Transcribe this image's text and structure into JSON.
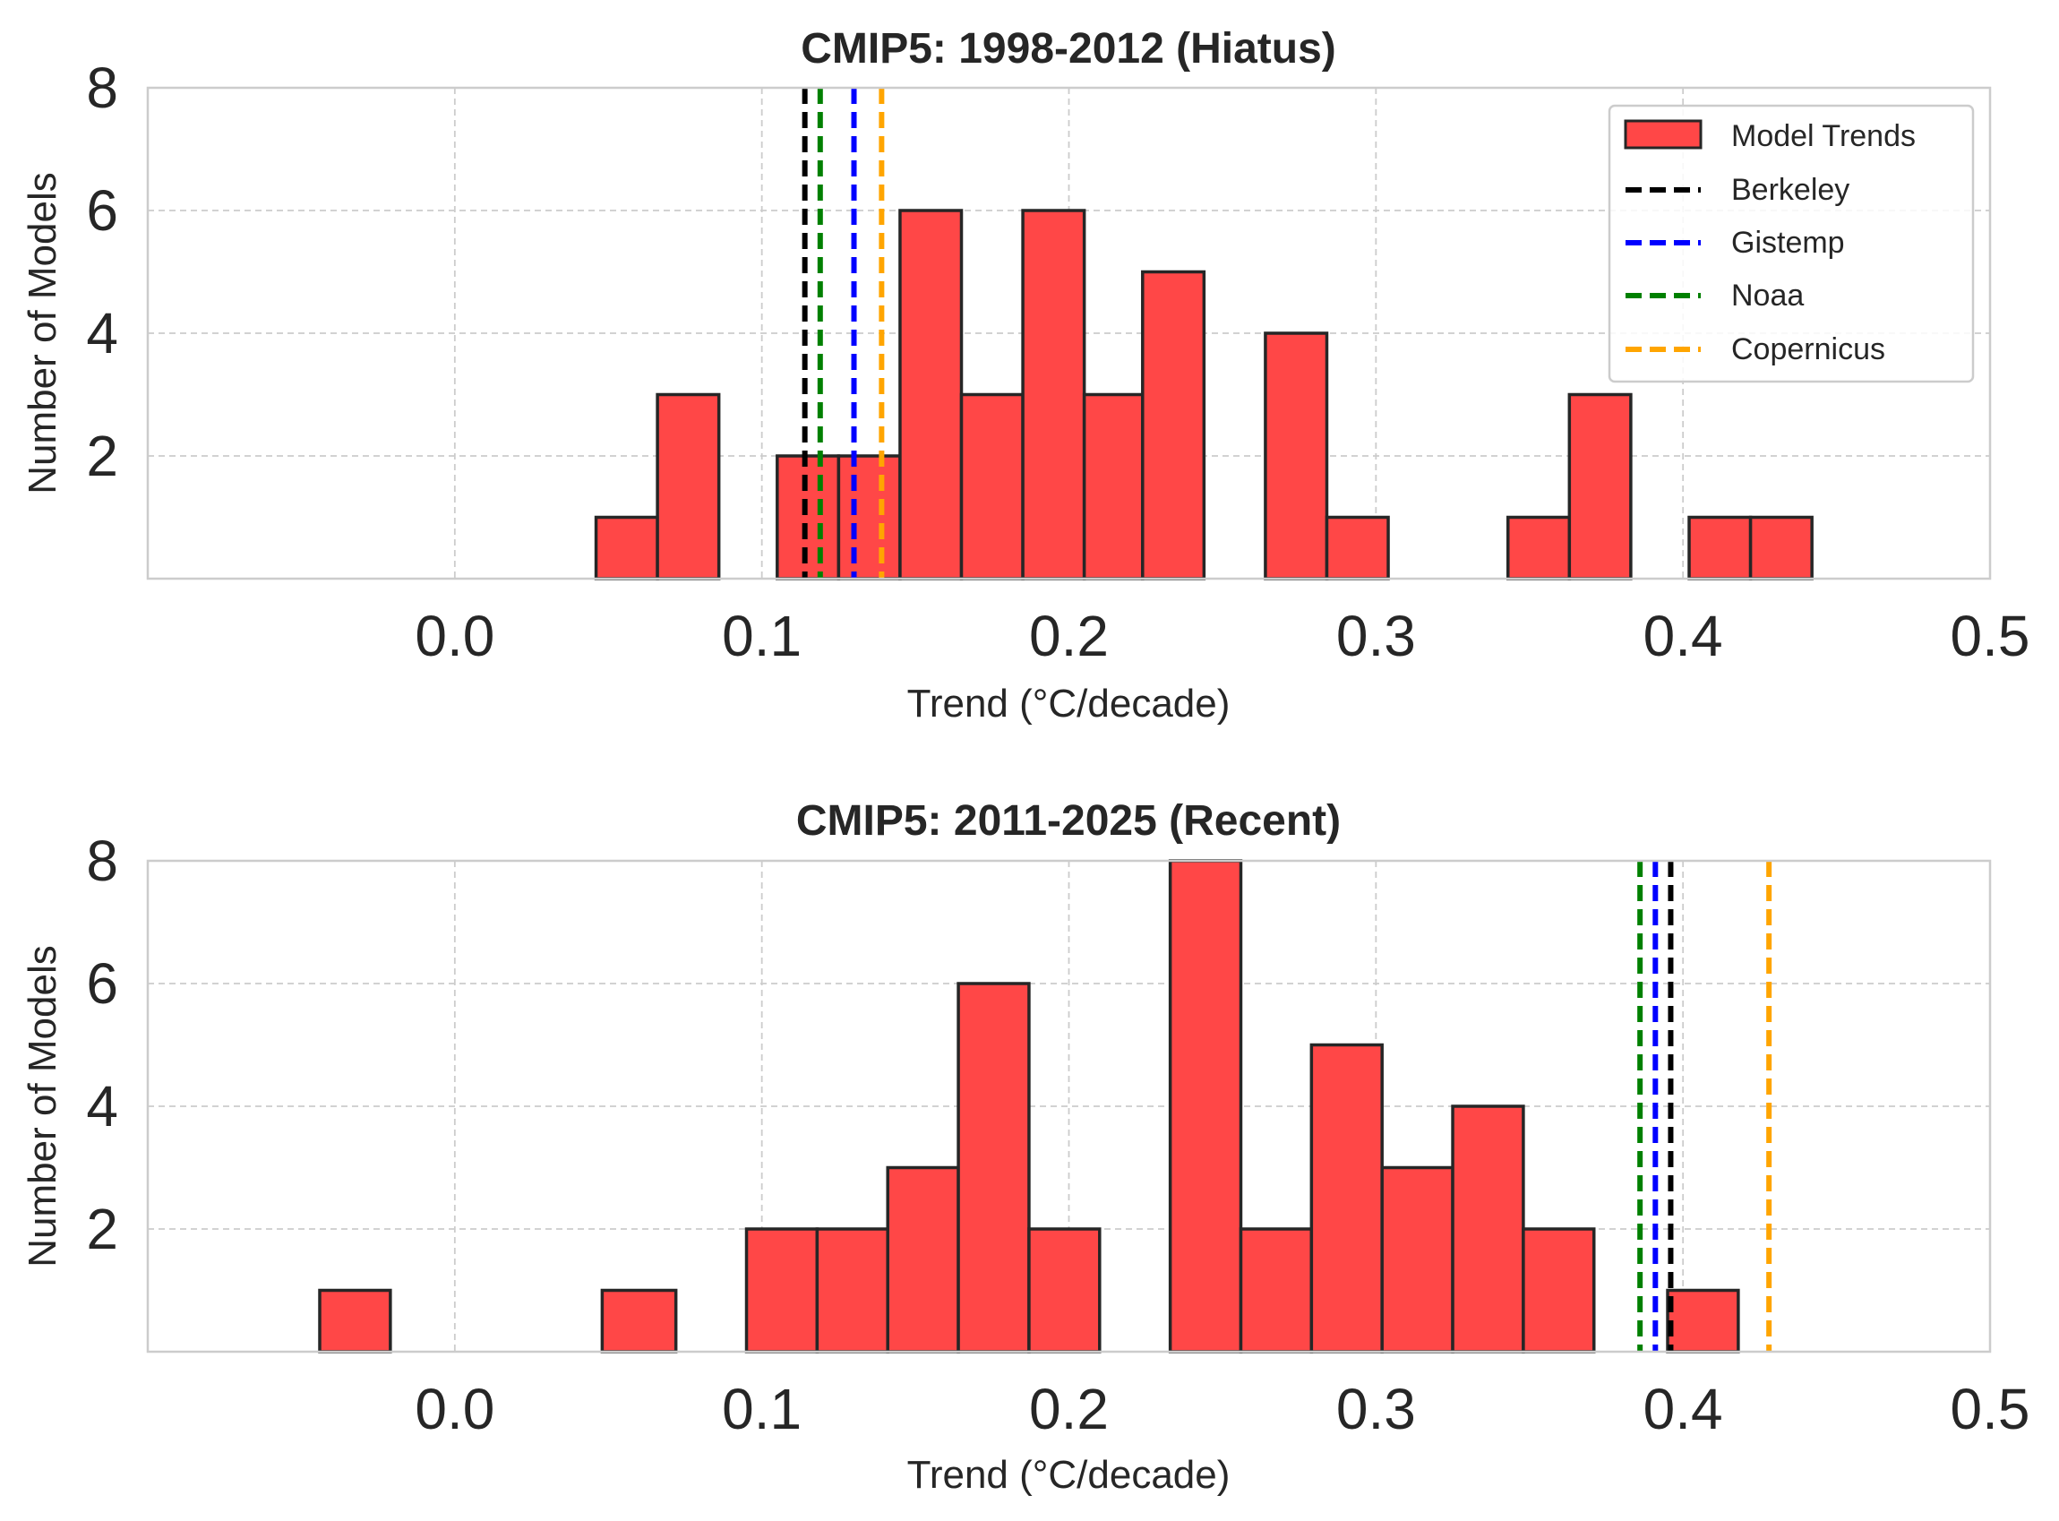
{
  "chart_data": [
    {
      "type": "bar",
      "subtype": "histogram",
      "title": "CMIP5: 1998-2012 (Hiatus)",
      "xlabel": "Trend (°C/decade)",
      "ylabel": "Number of Models",
      "xlim": [
        -0.1,
        0.5
      ],
      "ylim": [
        0,
        8
      ],
      "xticks": [
        "0.0",
        "0.1",
        "0.2",
        "0.3",
        "0.4",
        "0.5"
      ],
      "xtick_values": [
        0.0,
        0.1,
        0.2,
        0.3,
        0.4,
        0.5
      ],
      "yticks": [
        "2",
        "4",
        "6",
        "8"
      ],
      "ytick_values": [
        2,
        4,
        6,
        8
      ],
      "grid": true,
      "legend_position": "top-right",
      "bins": [
        {
          "x0": 0.046,
          "x1": 0.066,
          "count": 1
        },
        {
          "x0": 0.066,
          "x1": 0.086,
          "count": 3
        },
        {
          "x0": 0.105,
          "x1": 0.125,
          "count": 2
        },
        {
          "x0": 0.125,
          "x1": 0.145,
          "count": 2
        },
        {
          "x0": 0.145,
          "x1": 0.165,
          "count": 6
        },
        {
          "x0": 0.165,
          "x1": 0.185,
          "count": 3
        },
        {
          "x0": 0.185,
          "x1": 0.205,
          "count": 6
        },
        {
          "x0": 0.205,
          "x1": 0.224,
          "count": 3
        },
        {
          "x0": 0.224,
          "x1": 0.244,
          "count": 5
        },
        {
          "x0": 0.264,
          "x1": 0.284,
          "count": 4
        },
        {
          "x0": 0.284,
          "x1": 0.304,
          "count": 1
        },
        {
          "x0": 0.343,
          "x1": 0.363,
          "count": 1
        },
        {
          "x0": 0.363,
          "x1": 0.383,
          "count": 3
        },
        {
          "x0": 0.402,
          "x1": 0.422,
          "count": 1
        },
        {
          "x0": 0.422,
          "x1": 0.442,
          "count": 1
        }
      ],
      "reference_lines": [
        {
          "name": "Berkeley",
          "value": 0.114,
          "color": "#000000"
        },
        {
          "name": "Noaa",
          "value": 0.119,
          "color": "#008000"
        },
        {
          "name": "Gistemp",
          "value": 0.13,
          "color": "#0000ff"
        },
        {
          "name": "Copernicus",
          "value": 0.139,
          "color": "#ffa500"
        }
      ],
      "legend": [
        {
          "label": "Model Trends",
          "kind": "patch",
          "color": "#ff4747"
        },
        {
          "label": "Berkeley",
          "kind": "line",
          "color": "#000000"
        },
        {
          "label": "Gistemp",
          "kind": "line",
          "color": "#0000ff"
        },
        {
          "label": "Noaa",
          "kind": "line",
          "color": "#008000"
        },
        {
          "label": "Copernicus",
          "kind": "line",
          "color": "#ffa500"
        }
      ]
    },
    {
      "type": "bar",
      "subtype": "histogram",
      "title": "CMIP5: 2011-2025 (Recent)",
      "xlabel": "Trend (°C/decade)",
      "ylabel": "Number of Models",
      "xlim": [
        -0.1,
        0.5
      ],
      "ylim": [
        0,
        8
      ],
      "xticks": [
        "0.0",
        "0.1",
        "0.2",
        "0.3",
        "0.4",
        "0.5"
      ],
      "xtick_values": [
        0.0,
        0.1,
        0.2,
        0.3,
        0.4,
        0.5
      ],
      "yticks": [
        "2",
        "4",
        "6",
        "8"
      ],
      "ytick_values": [
        2,
        4,
        6,
        8
      ],
      "grid": true,
      "bins": [
        {
          "x0": -0.044,
          "x1": -0.021,
          "count": 1
        },
        {
          "x0": 0.048,
          "x1": 0.072,
          "count": 1
        },
        {
          "x0": 0.095,
          "x1": 0.118,
          "count": 2
        },
        {
          "x0": 0.118,
          "x1": 0.141,
          "count": 2
        },
        {
          "x0": 0.141,
          "x1": 0.164,
          "count": 3
        },
        {
          "x0": 0.164,
          "x1": 0.187,
          "count": 6
        },
        {
          "x0": 0.187,
          "x1": 0.21,
          "count": 2
        },
        {
          "x0": 0.233,
          "x1": 0.256,
          "count": 8
        },
        {
          "x0": 0.256,
          "x1": 0.279,
          "count": 2
        },
        {
          "x0": 0.279,
          "x1": 0.302,
          "count": 5
        },
        {
          "x0": 0.302,
          "x1": 0.325,
          "count": 3
        },
        {
          "x0": 0.325,
          "x1": 0.348,
          "count": 4
        },
        {
          "x0": 0.348,
          "x1": 0.371,
          "count": 2
        },
        {
          "x0": 0.395,
          "x1": 0.418,
          "count": 1
        }
      ],
      "reference_lines": [
        {
          "name": "Noaa",
          "value": 0.386,
          "color": "#008000"
        },
        {
          "name": "Gistemp",
          "value": 0.391,
          "color": "#0000ff"
        },
        {
          "name": "Berkeley",
          "value": 0.396,
          "color": "#000000"
        },
        {
          "name": "Copernicus",
          "value": 0.428,
          "color": "#ffa500"
        }
      ]
    }
  ],
  "colors": {
    "bar_fill": "#ff4747",
    "bar_edge": "#262626",
    "grid": "#cccccc",
    "spine": "#cccccc",
    "text": "#262626"
  }
}
